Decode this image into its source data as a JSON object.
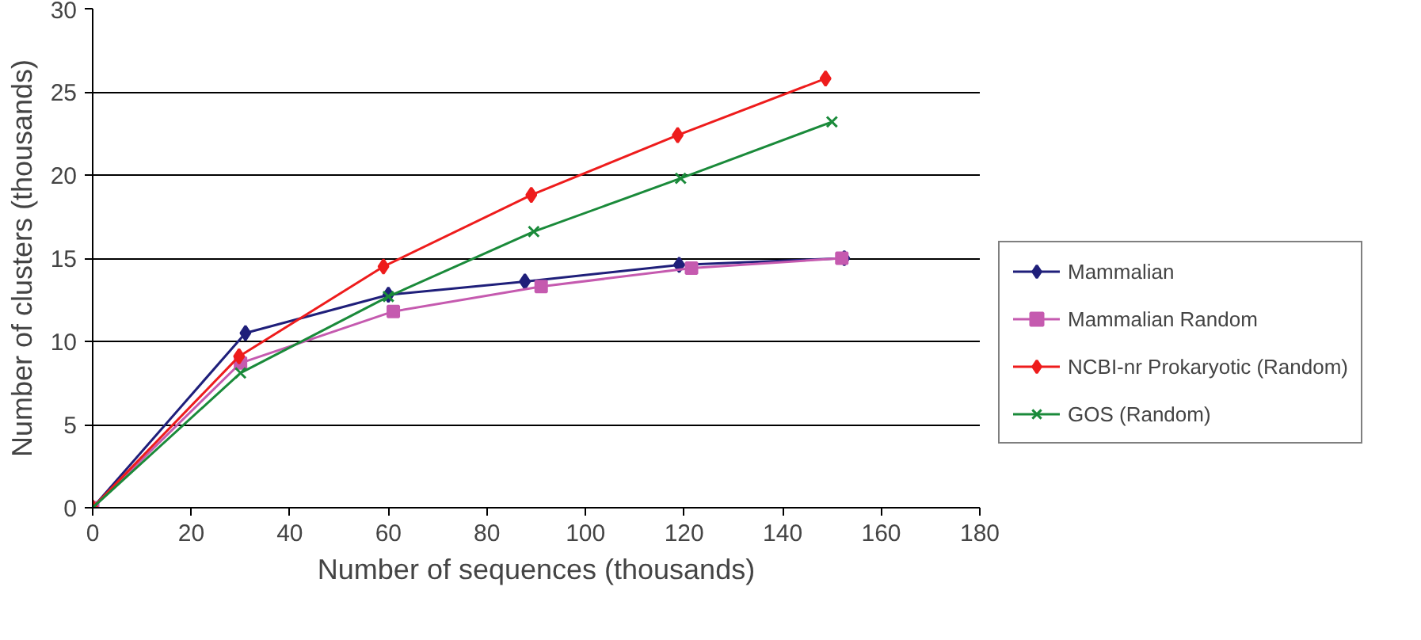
{
  "chart_data": {
    "type": "line",
    "xlabel": "Number of sequences (thousands)",
    "ylabel": "Number of clusters (thousands)",
    "xlim": [
      0,
      180
    ],
    "xticks": [
      0,
      20,
      40,
      60,
      80,
      100,
      120,
      140,
      160,
      180
    ],
    "ylim": [
      0,
      30
    ],
    "yticks": [
      0,
      5,
      10,
      15,
      20,
      25,
      30
    ],
    "grid": "y",
    "legend": "right",
    "line_style": "solid",
    "series": [
      {
        "name": "Mammalian",
        "color": "#1f1f7a",
        "marker": "diamond",
        "x": [
          0,
          31,
          60,
          87.7,
          119,
          152.5
        ],
        "values": [
          0,
          10.5,
          12.8,
          13.6,
          14.6,
          15.0
        ]
      },
      {
        "name": "Mammalian Random",
        "color": "#c55aaf",
        "marker": "square",
        "x": [
          0,
          30,
          61,
          91,
          121.5,
          152
        ],
        "values": [
          0,
          8.7,
          11.8,
          13.3,
          14.4,
          15.0
        ]
      },
      {
        "name": "NCBI-nr Prokaryotic (Random)",
        "color": "#ee1c1c",
        "marker": "diamond",
        "x": [
          0,
          29.7,
          59,
          89,
          118.7,
          148.7
        ],
        "values": [
          0,
          9.1,
          14.5,
          18.8,
          22.4,
          25.8
        ]
      },
      {
        "name": "GOS (Random)",
        "color": "#1a8a3a",
        "marker": "x",
        "x": [
          0,
          30,
          60,
          89.5,
          119.3,
          150
        ],
        "values": [
          0,
          8.1,
          12.7,
          16.6,
          19.8,
          23.2
        ]
      }
    ]
  }
}
